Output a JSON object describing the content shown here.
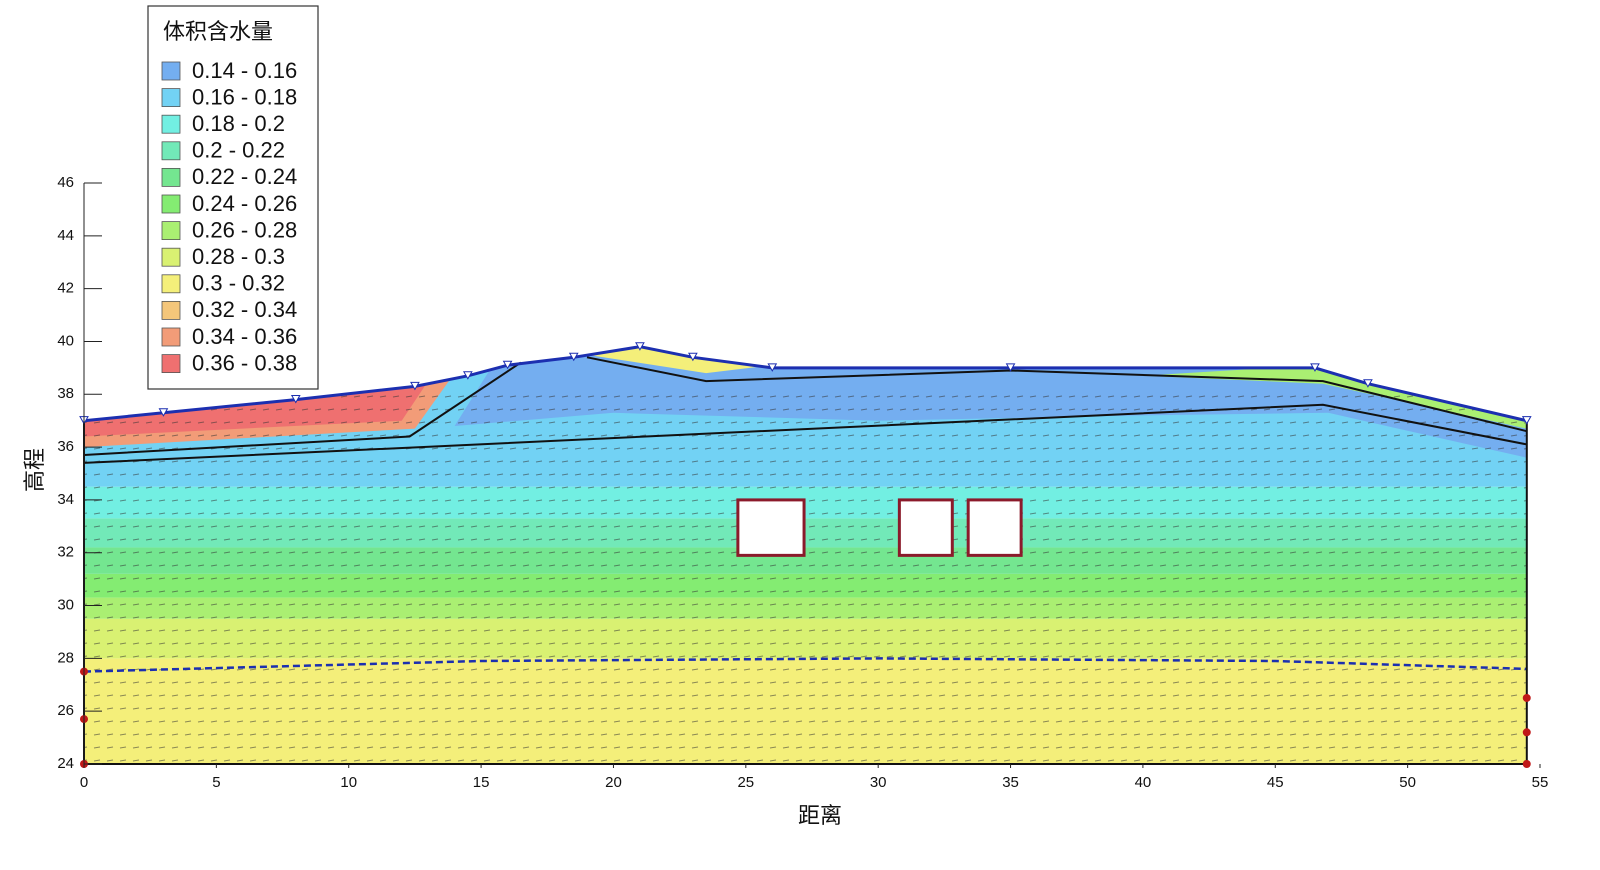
{
  "chart_data": {
    "type": "contour",
    "xlabel": "距离",
    "ylabel": "高程",
    "xlim": [
      0,
      55
    ],
    "ylim": [
      24,
      46
    ],
    "xticks": [
      0,
      5,
      10,
      15,
      20,
      25,
      30,
      35,
      40,
      45,
      50,
      55
    ],
    "yticks": [
      24,
      26,
      28,
      30,
      32,
      34,
      36,
      38,
      40,
      42,
      44,
      46
    ],
    "legend": {
      "title": "体积含水量",
      "items": [
        {
          "label": "0.14 - 0.16",
          "color": "#74aef0"
        },
        {
          "label": "0.16 - 0.18",
          "color": "#72d2f4"
        },
        {
          "label": "0.18 - 0.2",
          "color": "#72efe2"
        },
        {
          "label": "0.2 - 0.22",
          "color": "#72e9b8"
        },
        {
          "label": "0.22 - 0.24",
          "color": "#74e690"
        },
        {
          "label": "0.24 - 0.26",
          "color": "#84ec72"
        },
        {
          "label": "0.26 - 0.28",
          "color": "#aaef72"
        },
        {
          "label": "0.28 - 0.3",
          "color": "#d9f172"
        },
        {
          "label": "0.3 - 0.32",
          "color": "#f4ef7a"
        },
        {
          "label": "0.32 - 0.34",
          "color": "#f4c67a"
        },
        {
          "label": "0.34 - 0.36",
          "color": "#f29c78"
        },
        {
          "label": "0.36 - 0.38",
          "color": "#ef7070"
        }
      ]
    }
  }
}
